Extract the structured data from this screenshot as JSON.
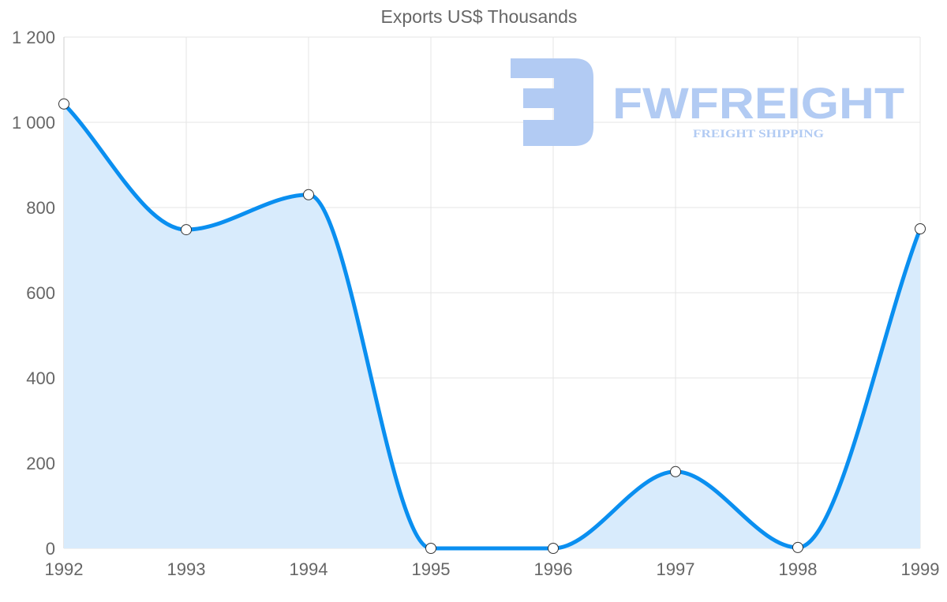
{
  "chart_data": {
    "type": "line",
    "title": "Exports US$ Thousands",
    "xlabel": "",
    "ylabel": "",
    "categories": [
      "1992",
      "1993",
      "1994",
      "1995",
      "1996",
      "1997",
      "1998",
      "1999"
    ],
    "series": [
      {
        "name": "Exports US$ Thousands",
        "values": [
          1043,
          748,
          830,
          0,
          0,
          180,
          2,
          750
        ],
        "color": "#0a8ff0",
        "fill": "#d8ebfc"
      }
    ],
    "ylim": [
      0,
      1200
    ],
    "yticks": [
      0,
      200,
      400,
      600,
      800,
      1000,
      1200
    ],
    "ytick_labels": [
      "0",
      "200",
      "400",
      "600",
      "800",
      "1 000",
      "1 200"
    ],
    "grid": true,
    "legend": "none"
  },
  "watermark": {
    "brand": "FWFREIGHT",
    "tagline": "FREIGHT SHIPPING",
    "color": "#b2cbf3"
  }
}
